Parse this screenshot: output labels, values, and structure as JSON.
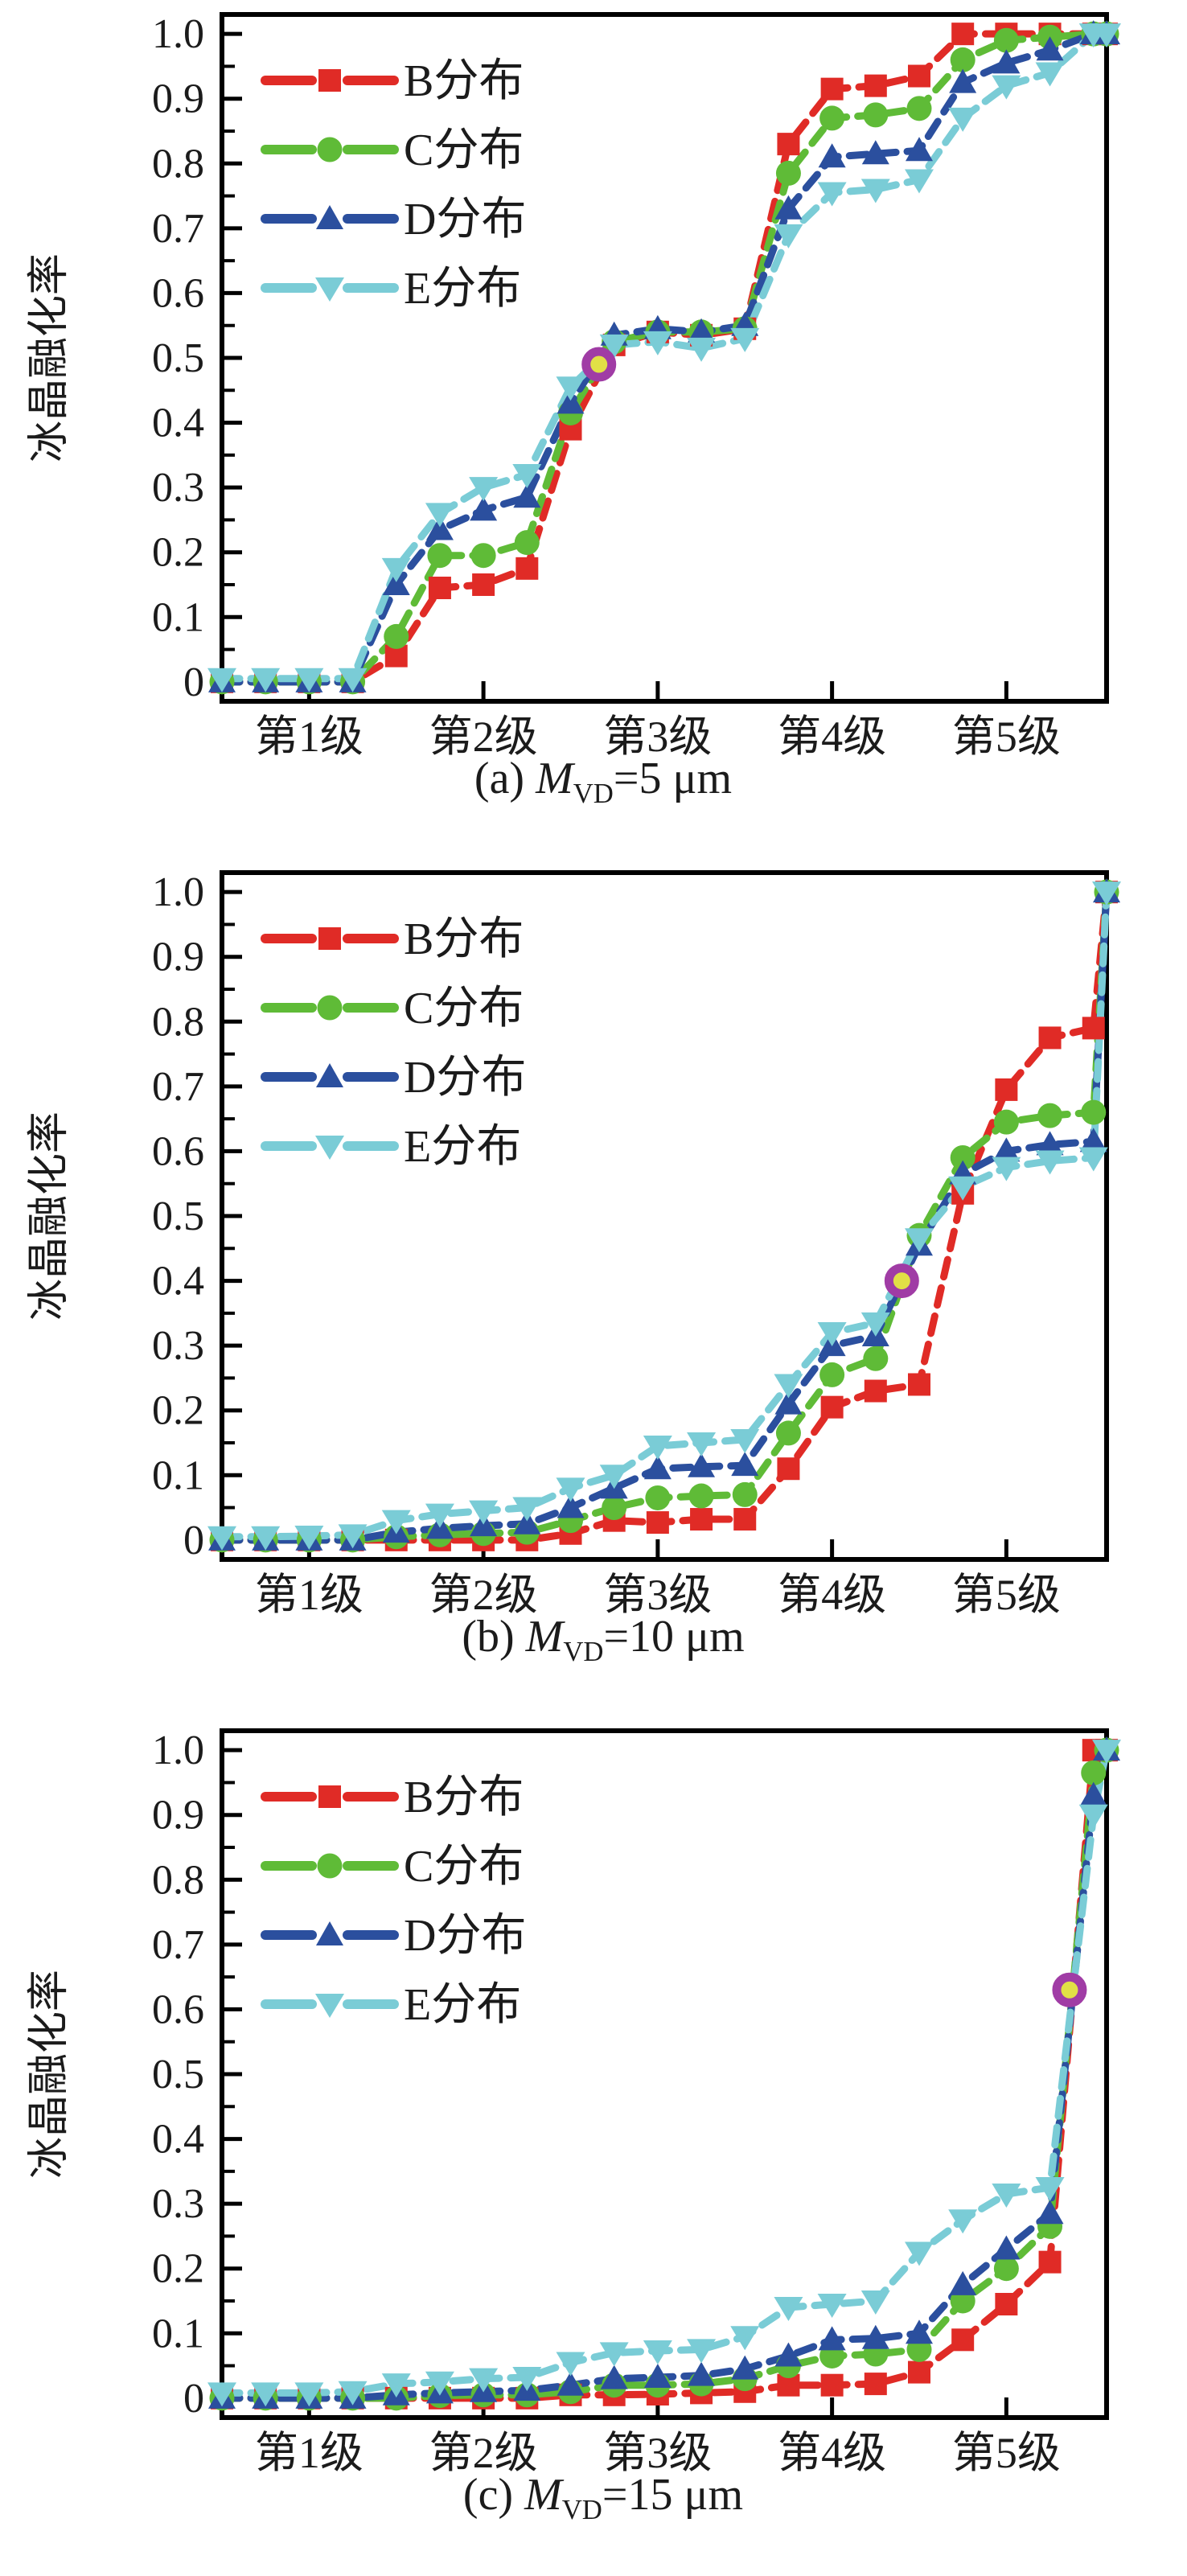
{
  "page": {
    "background": "#ffffff",
    "text_color": "#1b1b1b"
  },
  "axis": {
    "ylabel": "冰晶融化率",
    "y_tick_labels": [
      "0",
      "0.1",
      "0.2",
      "0.3",
      "0.4",
      "0.5",
      "0.6",
      "0.7",
      "0.8",
      "0.9",
      "1.0"
    ],
    "x_tick_labels": [
      "第1级",
      "第2级",
      "第3级",
      "第4级",
      "第5级"
    ],
    "x_tick_positions": [
      2,
      6,
      10,
      14,
      18
    ],
    "x_values": [
      0,
      1,
      2,
      3,
      4,
      5,
      6,
      7,
      8,
      9,
      10,
      11,
      12,
      13,
      14,
      15,
      16,
      17,
      18,
      19,
      20,
      20.3
    ],
    "xlim": [
      0,
      20.3
    ],
    "ylim": [
      -0.03,
      1.03
    ],
    "y_major_step": 0.1,
    "y_minor_step": 0.05,
    "grid": false,
    "tick_direction": "in",
    "spine_color": "#000000"
  },
  "series_style": [
    {
      "name": "B分布",
      "color": "#e02b26",
      "marker": "square"
    },
    {
      "name": "C分布",
      "color": "#5fbb37",
      "marker": "circle"
    },
    {
      "name": "D分布",
      "color": "#2b4f9e",
      "marker": "triangle-up"
    },
    {
      "name": "E分布",
      "color": "#7accd6",
      "marker": "triangle-down"
    }
  ],
  "legend": {
    "position": "upper-left",
    "items": [
      "B分布",
      "C分布",
      "D分布",
      "E分布"
    ]
  },
  "highlight_style": {
    "fill": "#e1e046",
    "ring": "#a03ca5"
  },
  "chart_data": [
    {
      "type": "line",
      "panel": "a",
      "caption": {
        "prefix": "(a) ",
        "symbol": "M",
        "subscript": "VD",
        "suffix": "=5 μm"
      },
      "title": "M_VD=5 um",
      "xlabel": "",
      "ylabel": "冰晶融化率",
      "series": [
        {
          "name": "B分布",
          "values": [
            0,
            0,
            0,
            0,
            0.04,
            0.145,
            0.15,
            0.175,
            0.39,
            0.52,
            0.54,
            0.535,
            0.545,
            0.83,
            0.915,
            0.92,
            0.935,
            1.0,
            1.0,
            1.0,
            1.0,
            1.0
          ]
        },
        {
          "name": "C分布",
          "values": [
            0,
            0,
            0,
            0,
            0.07,
            0.195,
            0.195,
            0.215,
            0.415,
            0.525,
            0.54,
            0.54,
            0.545,
            0.785,
            0.87,
            0.875,
            0.885,
            0.96,
            0.99,
            0.995,
            1.0,
            1.0
          ]
        },
        {
          "name": "D分布",
          "values": [
            0,
            0,
            0,
            0,
            0.15,
            0.235,
            0.265,
            0.285,
            0.43,
            0.535,
            0.545,
            0.54,
            0.55,
            0.73,
            0.81,
            0.815,
            0.82,
            0.925,
            0.955,
            0.975,
            1.0,
            1.0
          ]
        },
        {
          "name": "E分布",
          "values": [
            0.005,
            0.005,
            0.005,
            0.005,
            0.175,
            0.26,
            0.3,
            0.32,
            0.455,
            0.52,
            0.525,
            0.515,
            0.53,
            0.69,
            0.755,
            0.76,
            0.775,
            0.87,
            0.92,
            0.94,
            1.0,
            1.0
          ]
        }
      ],
      "highlight": {
        "x": 8.65,
        "y": 0.49
      }
    },
    {
      "type": "line",
      "panel": "b",
      "caption": {
        "prefix": "(b) ",
        "symbol": "M",
        "subscript": "VD",
        "suffix": "=10 μm"
      },
      "title": "M_VD=10 um",
      "xlabel": "",
      "ylabel": "冰晶融化率",
      "series": [
        {
          "name": "B分布",
          "values": [
            0,
            0,
            0,
            0,
            0,
            0,
            0,
            0,
            0.01,
            0.03,
            0.027,
            0.032,
            0.032,
            0.11,
            0.205,
            0.23,
            0.24,
            0.535,
            0.695,
            0.775,
            0.79,
            1.0
          ]
        },
        {
          "name": "C分布",
          "values": [
            0,
            0,
            0,
            0,
            0.005,
            0.008,
            0.01,
            0.012,
            0.03,
            0.05,
            0.065,
            0.068,
            0.07,
            0.165,
            0.255,
            0.28,
            0.47,
            0.59,
            0.645,
            0.655,
            0.66,
            1.0
          ]
        },
        {
          "name": "D分布",
          "values": [
            0,
            0,
            0,
            0,
            0.012,
            0.018,
            0.022,
            0.025,
            0.05,
            0.08,
            0.11,
            0.113,
            0.115,
            0.21,
            0.3,
            0.315,
            0.455,
            0.565,
            0.6,
            0.61,
            0.615,
            1.0
          ]
        },
        {
          "name": "E分布",
          "values": [
            0.005,
            0.005,
            0.006,
            0.008,
            0.03,
            0.04,
            0.045,
            0.05,
            0.08,
            0.1,
            0.145,
            0.15,
            0.155,
            0.24,
            0.32,
            0.335,
            0.465,
            0.545,
            0.575,
            0.585,
            0.59,
            1.0
          ]
        }
      ],
      "highlight": {
        "x": 15.6,
        "y": 0.4
      }
    },
    {
      "type": "line",
      "panel": "c",
      "caption": {
        "prefix": "(c) ",
        "symbol": "M",
        "subscript": "VD",
        "suffix": "=15 μm"
      },
      "title": "M_VD=15 um",
      "xlabel": "",
      "ylabel": "冰晶融化率",
      "series": [
        {
          "name": "B分布",
          "values": [
            0,
            0,
            0,
            0,
            0,
            0,
            0,
            0,
            0.005,
            0.005,
            0.006,
            0.008,
            0.01,
            0.02,
            0.02,
            0.022,
            0.04,
            0.09,
            0.145,
            0.21,
            1.0,
            1.0
          ]
        },
        {
          "name": "C分布",
          "values": [
            0,
            0,
            0,
            0,
            0,
            0.004,
            0.005,
            0.005,
            0.01,
            0.02,
            0.02,
            0.022,
            0.03,
            0.05,
            0.065,
            0.068,
            0.075,
            0.15,
            0.2,
            0.265,
            0.965,
            1.0
          ]
        },
        {
          "name": "D分布",
          "values": [
            0,
            0,
            0,
            0,
            0.005,
            0.008,
            0.01,
            0.012,
            0.02,
            0.03,
            0.032,
            0.035,
            0.045,
            0.065,
            0.09,
            0.092,
            0.1,
            0.175,
            0.23,
            0.285,
            0.93,
            1.0
          ]
        },
        {
          "name": "E分布",
          "values": [
            0.008,
            0.008,
            0.008,
            0.01,
            0.022,
            0.025,
            0.03,
            0.032,
            0.055,
            0.07,
            0.073,
            0.075,
            0.095,
            0.14,
            0.145,
            0.15,
            0.225,
            0.275,
            0.315,
            0.325,
            0.9,
            1.0
          ]
        }
      ],
      "highlight": {
        "x": 19.45,
        "y": 0.63
      }
    }
  ]
}
